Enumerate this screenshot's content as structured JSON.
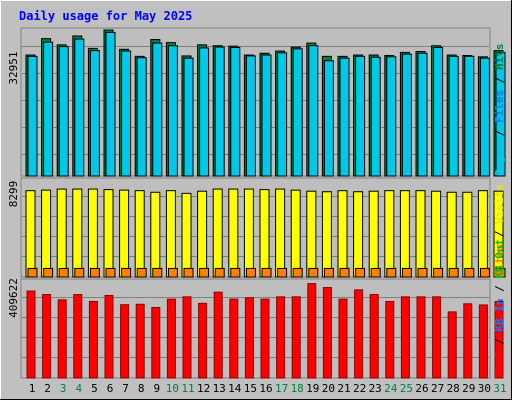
{
  "chart_data": [
    {
      "type": "bar",
      "title": "Daily usage for May 2025",
      "ytick_label": "32951",
      "ylim": [
        0,
        32951
      ],
      "legend": {
        "placement": "right",
        "entries": [
          {
            "label": "Pages",
            "color": "#00c8e8"
          },
          {
            "label": "Files",
            "color": "#0080ff"
          },
          {
            "label": "Hits",
            "color": "#008040"
          }
        ],
        "separator": " / "
      },
      "categories": [
        "1",
        "2",
        "3",
        "4",
        "5",
        "6",
        "7",
        "8",
        "9",
        "10",
        "11",
        "12",
        "13",
        "14",
        "15",
        "16",
        "17",
        "18",
        "19",
        "20",
        "21",
        "22",
        "23",
        "24",
        "25",
        "26",
        "27",
        "28",
        "29",
        "30",
        "31"
      ],
      "weekend_days": [
        "3",
        "4",
        "10",
        "11",
        "17",
        "18",
        "24",
        "25",
        "31"
      ],
      "series": [
        {
          "name": "Hits",
          "color": "#008040",
          "values": [
            27300,
            31000,
            29600,
            31600,
            28800,
            32950,
            28600,
            27000,
            30800,
            30100,
            27100,
            29600,
            29400,
            29300,
            27300,
            27700,
            28200,
            29100,
            30000,
            27000,
            27000,
            27300,
            27300,
            27200,
            27900,
            28100,
            29400,
            27300,
            27200,
            26900,
            28300
          ]
        },
        {
          "name": "Files",
          "color": "#00c8e8",
          "values": [
            27000,
            30200,
            29200,
            30900,
            28300,
            32400,
            28200,
            26700,
            30000,
            29400,
            26600,
            28900,
            29100,
            29000,
            27100,
            27300,
            27800,
            28700,
            29400,
            26000,
            26600,
            27000,
            26800,
            26900,
            27500,
            27700,
            29000,
            27000,
            27000,
            26600,
            27900
          ]
        }
      ]
    },
    {
      "type": "bar",
      "ytick_label": "8299",
      "ylim": [
        0,
        8299
      ],
      "legend": {
        "placement": "right",
        "entries": [
          {
            "label": "Sites",
            "color": "#ff8000"
          },
          {
            "label": "Visits",
            "color": "#e8e800"
          }
        ],
        "separator": " / "
      },
      "categories": [
        "1",
        "2",
        "3",
        "4",
        "5",
        "6",
        "7",
        "8",
        "9",
        "10",
        "11",
        "12",
        "13",
        "14",
        "15",
        "16",
        "17",
        "18",
        "19",
        "20",
        "21",
        "22",
        "23",
        "24",
        "25",
        "26",
        "27",
        "28",
        "29",
        "30",
        "31"
      ],
      "series": [
        {
          "name": "Visits",
          "color": "#ffff00",
          "values": [
            8050,
            8100,
            8200,
            8200,
            8200,
            8150,
            8100,
            8050,
            7900,
            8050,
            7800,
            8000,
            8200,
            8200,
            8200,
            8150,
            8200,
            8100,
            8000,
            7950,
            8050,
            7950,
            8000,
            8050,
            8050,
            8050,
            8000,
            7900,
            7900,
            8050,
            8000
          ]
        },
        {
          "name": "Sites",
          "color": "#ff8000",
          "values": [
            800,
            800,
            800,
            800,
            800,
            800,
            800,
            800,
            800,
            800,
            800,
            800,
            800,
            800,
            800,
            800,
            800,
            800,
            800,
            800,
            800,
            800,
            800,
            800,
            800,
            800,
            800,
            800,
            800,
            800,
            800
          ]
        }
      ]
    },
    {
      "type": "bar",
      "ytick_label": "409622",
      "ylim": [
        0,
        409622
      ],
      "legend": {
        "placement": "right",
        "entries": [
          {
            "label": "KB F",
            "color": "#ff0000"
          },
          {
            "label": "KB In",
            "color": "#0080ff"
          },
          {
            "label": "KB Out",
            "color": "#00c000"
          }
        ],
        "separator": " / "
      },
      "categories": [
        "1",
        "2",
        "3",
        "4",
        "5",
        "6",
        "7",
        "8",
        "9",
        "10",
        "11",
        "12",
        "13",
        "14",
        "15",
        "16",
        "17",
        "18",
        "19",
        "20",
        "21",
        "22",
        "23",
        "24",
        "25",
        "26",
        "27",
        "28",
        "29",
        "30",
        "31"
      ],
      "series": [
        {
          "name": "KB F",
          "color": "#ff0000",
          "values": [
            375000,
            360000,
            337000,
            360000,
            330000,
            356000,
            316000,
            318000,
            304000,
            340000,
            350000,
            322000,
            370000,
            340000,
            346000,
            340000,
            350000,
            350000,
            407000,
            390000,
            340000,
            380000,
            360000,
            330000,
            350000,
            350000,
            350000,
            285000,
            320000,
            315000,
            330000
          ]
        }
      ]
    }
  ]
}
